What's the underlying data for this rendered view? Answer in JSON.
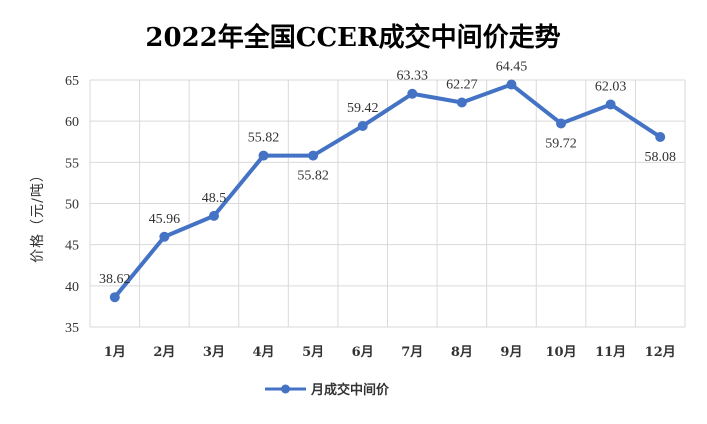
{
  "chart_data": {
    "type": "line",
    "title": "2022年全国CCER成交中间价走势",
    "ylabel": "价格（元/吨）",
    "xlabel": "",
    "categories": [
      "1月",
      "2月",
      "3月",
      "4月",
      "5月",
      "6月",
      "7月",
      "8月",
      "9月",
      "10月",
      "11月",
      "12月"
    ],
    "series": [
      {
        "name": "月成交中间价",
        "values": [
          38.62,
          45.96,
          48.5,
          55.82,
          55.82,
          59.42,
          63.33,
          62.27,
          64.45,
          59.72,
          62.03,
          58.08
        ],
        "labels": [
          "38.62",
          "45.96",
          "48.5",
          "55.82",
          "55.82",
          "59.42",
          "63.33",
          "62.27",
          "64.45",
          "59.72",
          "62.03",
          "58.08"
        ],
        "color": "#4472C4"
      }
    ],
    "ylim": [
      35,
      65
    ],
    "yticks": [
      35,
      40,
      45,
      50,
      55,
      60,
      65
    ],
    "grid": true,
    "legend": "bottom"
  }
}
